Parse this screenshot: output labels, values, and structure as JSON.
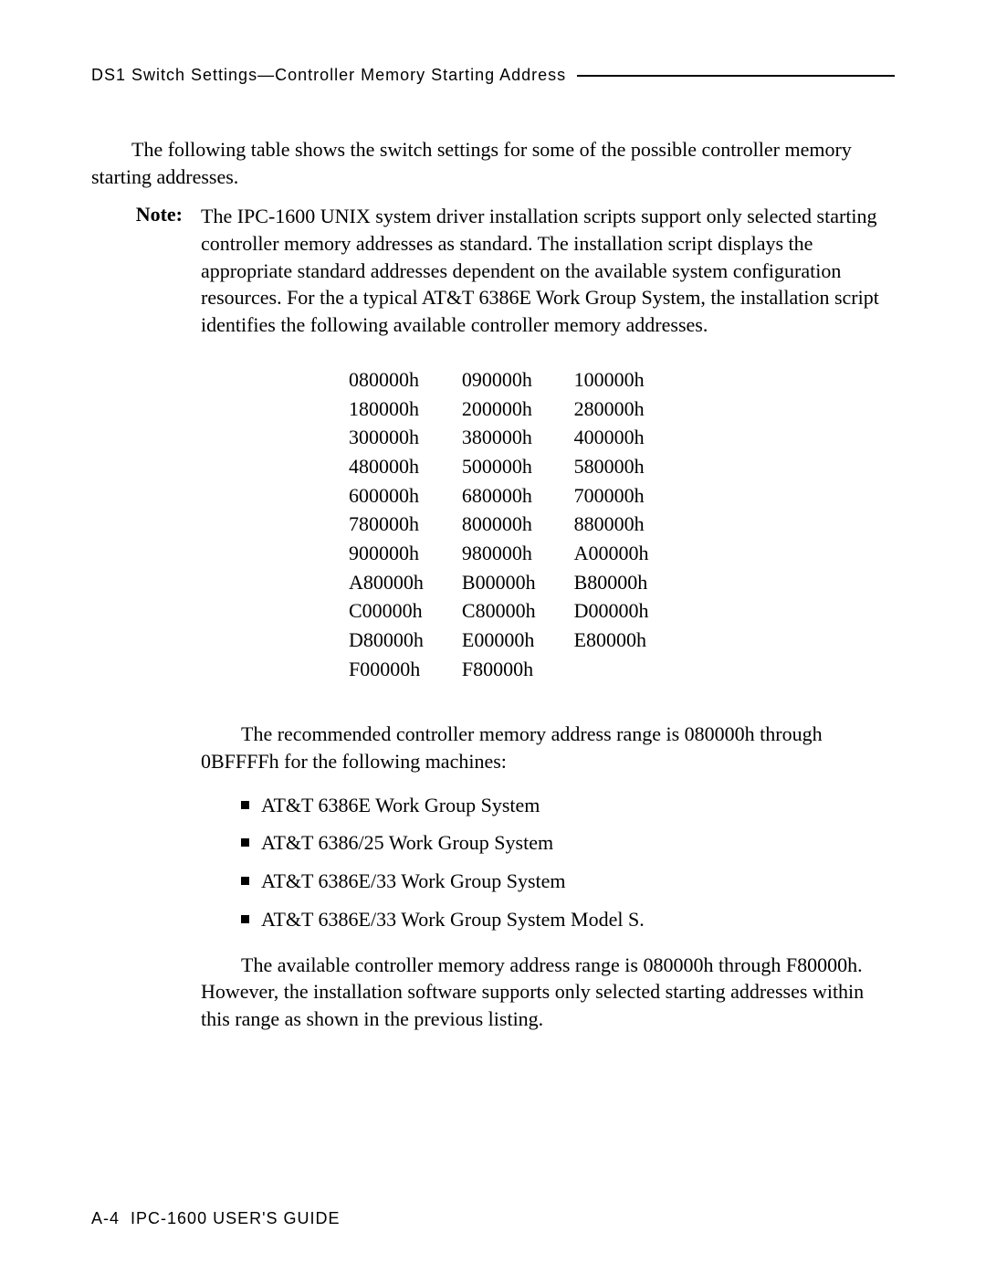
{
  "header": {
    "text": "DS1 Switch Settings—Controller Memory Starting Address"
  },
  "intro": "The following table shows the switch settings for some of the possible controller memory starting addresses.",
  "note": {
    "label": "Note:",
    "body": "The IPC-1600 UNIX system driver installation scripts support only selected starting controller memory addresses as standard. The installation script displays the appropriate standard addresses dependent on the available system configuration resources. For the a typical AT&T 6386E Work Group System, the installation script identifies the following available controller memory addresses."
  },
  "addresses": {
    "rows": [
      [
        "080000h",
        "090000h",
        "100000h"
      ],
      [
        "180000h",
        "200000h",
        "280000h"
      ],
      [
        "300000h",
        "380000h",
        "400000h"
      ],
      [
        "480000h",
        "500000h",
        "580000h"
      ],
      [
        "600000h",
        "680000h",
        "700000h"
      ],
      [
        "780000h",
        "800000h",
        "880000h"
      ],
      [
        "900000h",
        "980000h",
        "A00000h"
      ],
      [
        "A80000h",
        "B00000h",
        "B80000h"
      ],
      [
        "C00000h",
        "C80000h",
        "D00000h"
      ],
      [
        "D80000h",
        "E00000h",
        "E80000h"
      ],
      [
        "F00000h",
        "F80000h",
        ""
      ]
    ]
  },
  "rec_para": "The recommended controller memory address range is 080000h through 0BFFFFh for the following machines:",
  "bullets": [
    "AT&T 6386E Work Group System",
    "AT&T 6386/25 Work Group System",
    "AT&T 6386E/33 Work Group System",
    "AT&T 6386E/33 Work Group System Model S."
  ],
  "avail_para": "The available controller memory address range is 080000h through F80000h. However, the installation software supports only selected starting addresses within this range as shown in the previous listing.",
  "footer": {
    "page": "A-4",
    "title": "IPC-1600 USER'S GUIDE"
  }
}
